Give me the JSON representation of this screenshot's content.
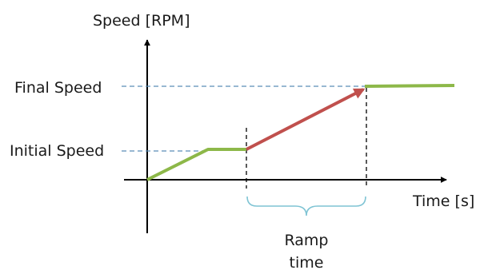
{
  "diagram": {
    "y_axis_label": "Speed [RPM]",
    "x_axis_label": "Time [s]",
    "final_speed_label": "Final Speed",
    "initial_speed_label": "Initial Speed",
    "ramp_label_line1": "Ramp",
    "ramp_label_line2": "time"
  },
  "colors": {
    "axis": "#000000",
    "green_segment": "#8db849",
    "red_ramp_arrow": "#c0504d",
    "dashed_guides": "#5b8db8",
    "brace": "#7fc4d4"
  }
}
